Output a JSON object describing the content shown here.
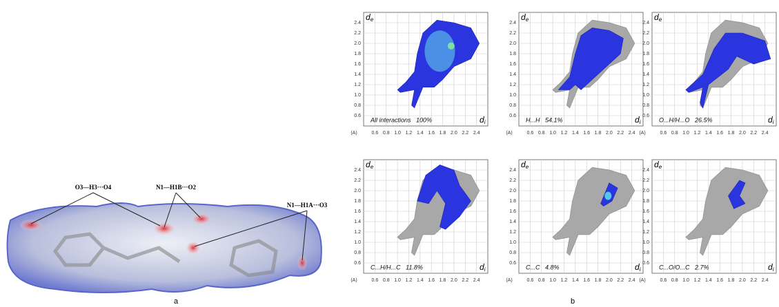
{
  "figure": {
    "panel_labels": [
      "a",
      "b"
    ],
    "surface_labels": [
      "O3—H3···O4",
      "N1—H1B···O2",
      "N1—H1A···O3"
    ],
    "y_axis_label": {
      "symbol": "d",
      "subscript": "e"
    },
    "x_axis_label": {
      "symbol": "d",
      "subscript": "i"
    },
    "x_unit": "(A)",
    "yticks": [
      "2.4",
      "2.2",
      "2.0",
      "1.8",
      "1.6",
      "1.4",
      "1.2",
      "1.0",
      "0.8",
      "0.6"
    ],
    "xticks": [
      "0.6",
      "0.8",
      "1.0",
      "1.2",
      "1.4",
      "1.6",
      "1.8",
      "2.0",
      "2.2",
      "2.4"
    ],
    "fingerprints": [
      {
        "label": "All interactions   100%"
      },
      {
        "label": "H...H   54.1%"
      },
      {
        "label": "O...H/H...O   26.5%"
      },
      {
        "label": "C...H/H...C   11.8%"
      },
      {
        "label": "C...C   4.8%"
      },
      {
        "label": "C...O/O...C   2.7%"
      }
    ]
  }
}
